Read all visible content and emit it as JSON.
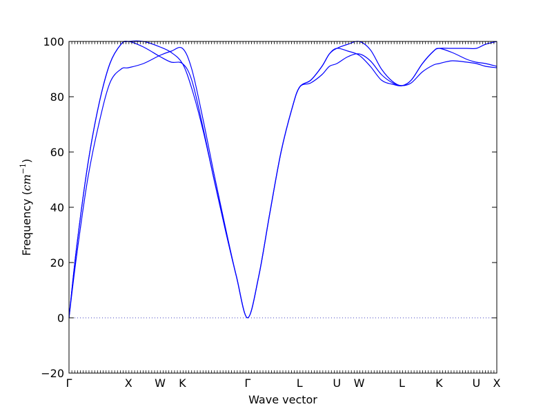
{
  "chart_data": {
    "type": "line",
    "title": "",
    "xlabel": "Wave vector",
    "ylabel_text": "Frequency (",
    "ylabel_unit_base": "cm",
    "ylabel_unit_exp": "−1",
    "ylabel_close": ")",
    "ylim": [
      -20,
      100
    ],
    "yticks": [
      -20,
      0,
      20,
      40,
      60,
      80,
      100
    ],
    "xlim": [
      0,
      11.5
    ],
    "grid": false,
    "line_color": "#0000ff",
    "zero_line_color": "#3f3fbf",
    "path_labels": [
      {
        "label": "Γ",
        "x": 0.0,
        "math": true
      },
      {
        "label": "X",
        "x": 1.6
      },
      {
        "label": "W",
        "x": 2.45
      },
      {
        "label": "K",
        "x": 3.05
      },
      {
        "label": "Γ",
        "x": 4.8,
        "math": true
      },
      {
        "label": "L",
        "x": 6.2
      },
      {
        "label": "U",
        "x": 7.2
      },
      {
        "label": "W",
        "x": 7.8
      },
      {
        "label": "L",
        "x": 8.95
      },
      {
        "label": "K",
        "x": 9.95
      },
      {
        "label": "U",
        "x": 10.95
      },
      {
        "label": "X",
        "x": 11.5
      }
    ],
    "series": [
      {
        "x": [
          0,
          0.2,
          0.5,
          0.8,
          1.1,
          1.4,
          1.6,
          2.0,
          2.45,
          2.75,
          3.05,
          3.3,
          3.6,
          3.9,
          4.2,
          4.5,
          4.8,
          5.1,
          5.4,
          5.7,
          6.0,
          6.2,
          6.5,
          6.8,
          7.0,
          7.2,
          7.5,
          7.8,
          8.1,
          8.4,
          8.7,
          8.95,
          9.2,
          9.5,
          9.8,
          9.95,
          10.3,
          10.7,
          10.95,
          11.2,
          11.5
        ],
        "y": [
          0,
          25,
          55,
          77,
          92,
          99,
          100,
          100,
          98,
          96,
          92,
          83,
          68,
          50,
          32,
          15,
          0,
          15,
          38,
          60,
          76,
          83.5,
          86,
          91,
          95.5,
          97.5,
          96.5,
          95,
          91,
          86,
          84.5,
          84,
          86,
          92,
          96.5,
          97.5,
          97.5,
          97.5,
          97.5,
          99,
          100
        ]
      },
      {
        "x": [
          0,
          0.2,
          0.5,
          0.8,
          1.1,
          1.4,
          1.6,
          2.0,
          2.45,
          2.75,
          3.05,
          3.3,
          3.6,
          3.9,
          4.2,
          4.5,
          4.8,
          5.1,
          5.4,
          5.7,
          6.0,
          6.2,
          6.5,
          6.8,
          7.0,
          7.2,
          7.5,
          7.8,
          8.1,
          8.4,
          8.7,
          8.95,
          9.2,
          9.5,
          9.8,
          9.95,
          10.3,
          10.7,
          10.95,
          11.2,
          11.5
        ],
        "y": [
          0,
          22,
          50,
          70,
          85,
          90,
          90.5,
          92,
          95,
          96.5,
          97.5,
          90,
          72,
          52,
          33,
          15,
          0,
          15,
          38,
          60,
          76,
          83.5,
          85,
          88,
          91,
          92,
          94.5,
          95.5,
          93,
          88,
          85,
          84,
          85,
          89,
          91.5,
          92,
          93,
          92.5,
          92,
          91,
          90.5
        ]
      },
      {
        "x": [
          0,
          0.2,
          0.5,
          0.8,
          1.1,
          1.4,
          1.6,
          2.0,
          2.45,
          2.75,
          3.05,
          3.3,
          3.6,
          3.9,
          4.2,
          4.5,
          4.8,
          5.1,
          5.4,
          5.7,
          6.0,
          6.2,
          6.5,
          6.8,
          7.0,
          7.2,
          7.5,
          7.8,
          8.1,
          8.4,
          8.7,
          8.95,
          9.2,
          9.5,
          9.8,
          9.95,
          10.3,
          10.7,
          10.95,
          11.2,
          11.5
        ],
        "y": [
          0,
          25,
          55,
          77,
          92,
          99,
          100,
          98,
          94.5,
          92.5,
          92,
          86,
          69,
          50,
          32,
          15,
          0,
          15,
          38,
          60,
          76,
          83.5,
          86,
          91,
          95.5,
          97.5,
          99,
          100,
          97,
          90,
          85.5,
          84,
          86,
          92,
          96.5,
          97.5,
          96,
          93.5,
          92.5,
          92,
          91
        ]
      }
    ]
  }
}
